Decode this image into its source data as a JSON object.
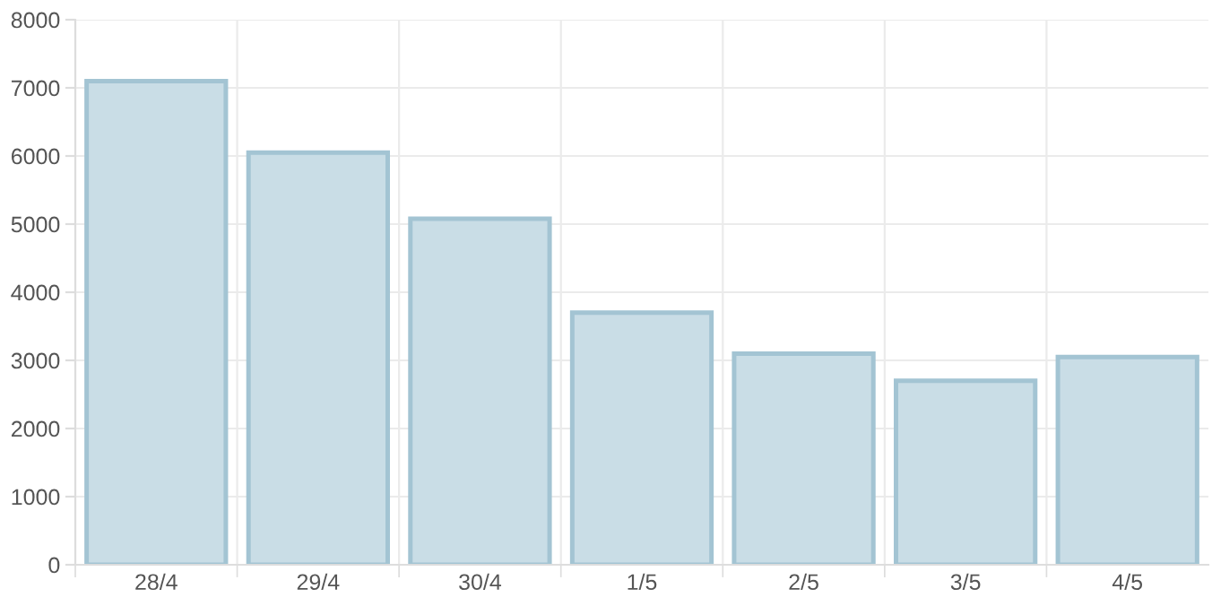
{
  "chart_data": {
    "type": "bar",
    "categories": [
      "28/4",
      "29/4",
      "30/4",
      "1/5",
      "2/5",
      "3/5",
      "4/5"
    ],
    "series": [
      {
        "color": "#c9dde6",
        "values": [
          7100,
          6050,
          5080,
          3700,
          3100,
          2700,
          3050
        ]
      }
    ],
    "ylim": [
      0,
      8000
    ],
    "yticks": [
      0,
      1000,
      2000,
      3000,
      4000,
      5000,
      6000,
      7000,
      8000
    ],
    "grid": true,
    "legend": false
  }
}
